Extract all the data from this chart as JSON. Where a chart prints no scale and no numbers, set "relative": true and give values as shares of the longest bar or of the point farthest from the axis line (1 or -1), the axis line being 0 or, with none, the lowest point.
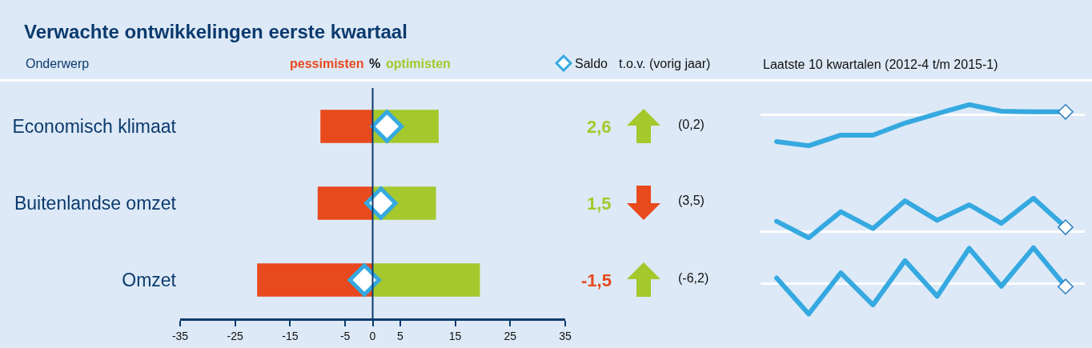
{
  "chart_data": [
    {
      "type": "bar",
      "title": "Verwachte ontwikkelingen eerste kwartaal",
      "ylabel": "Onderwerp",
      "xlabel": "%",
      "orientation": "horizontal",
      "stacked": true,
      "legend": "top",
      "marker": "diamond",
      "categories": [
        "Economisch klimaat",
        "Buitenlandse omzet",
        "Omzet"
      ],
      "xlim": [
        -35,
        35
      ],
      "xticks": [
        -35,
        -25,
        -15,
        -5,
        0,
        5,
        15,
        25,
        35
      ],
      "annotations": [
        "t.o.v. (vorig jaar)",
        "(0,2)",
        "(3,5)",
        "(-6,2)"
      ],
      "ref_lines": [
        {
          "axis": "x",
          "value": 0,
          "color": "#0b3a6e"
        }
      ],
      "series": [
        {
          "name": "pessimisten",
          "color": "#e8491d",
          "values": [
            -9.5,
            -10,
            -21
          ]
        },
        {
          "name": "optimisten",
          "color": "#a5c82c",
          "values": [
            12,
            11.5,
            19.5
          ]
        },
        {
          "name": "Saldo",
          "type": "scatter",
          "color": "#35a9e0",
          "values": [
            2.6,
            1.5,
            -1.5
          ],
          "value_labels": [
            "2,6",
            "1,5",
            "-1,5"
          ]
        }
      ]
    },
    {
      "type": "line",
      "title": "Laatste 10 kwartalen (2012-4 t/m 2015-1)",
      "relative": true,
      "categories": [
        null,
        null,
        null,
        null,
        null,
        null,
        null,
        null,
        null,
        null
      ],
      "series": [
        {
          "color": "#35a9e0",
          "values": [
            -0.87,
            -1,
            -0.66,
            -0.66,
            -0.27,
            0.03,
            0.32,
            0.11,
            0.09,
            0.09
          ]
        }
      ]
    },
    {
      "type": "line",
      "relative": true,
      "categories": [
        null,
        null,
        null,
        null,
        null,
        null,
        null,
        null,
        null,
        null
      ],
      "series": [
        {
          "color": "#35a9e0",
          "values": [
            0.3,
            -0.2,
            0.59,
            0.08,
            0.92,
            0.33,
            0.8,
            0.24,
            1,
            0.12
          ]
        }
      ]
    },
    {
      "type": "line",
      "relative": true,
      "categories": [
        null,
        null,
        null,
        null,
        null,
        null,
        null,
        null,
        null,
        null
      ],
      "series": [
        {
          "color": "#35a9e0",
          "values": [
            0.16,
            -0.84,
            0.3,
            -0.59,
            0.64,
            -0.35,
            0.98,
            -0.07,
            1,
            -0.08
          ]
        }
      ]
    }
  ]
}
